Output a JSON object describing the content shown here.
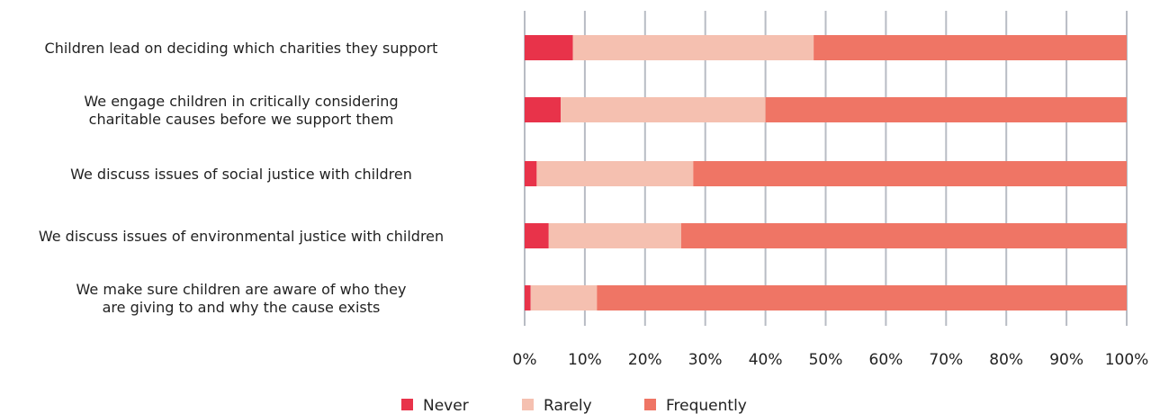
{
  "chart_data": {
    "type": "bar",
    "orientation": "horizontal",
    "stacked": true,
    "categories": [
      [
        "Children lead on deciding which charities they support"
      ],
      [
        "We engage children in critically considering",
        "charitable causes before we support them"
      ],
      [
        "We discuss issues of social justice with children"
      ],
      [
        "We discuss issues of environmental justice with children"
      ],
      [
        "We make sure children are aware of who they",
        "are giving to and why the cause exists"
      ]
    ],
    "series": [
      {
        "name": "Never",
        "color": "#e8334a",
        "values": [
          8,
          6,
          2,
          4,
          1
        ]
      },
      {
        "name": "Rarely",
        "color": "#f5c0b0",
        "values": [
          40,
          34,
          26,
          22,
          11
        ]
      },
      {
        "name": "Frequently",
        "color": "#ef7565",
        "values": [
          52,
          60,
          72,
          74,
          88
        ]
      }
    ],
    "xlim": [
      0,
      100
    ],
    "xticks": [
      "0%",
      "10%",
      "20%",
      "30%",
      "40%",
      "50%",
      "60%",
      "70%",
      "80%",
      "90%",
      "100%"
    ],
    "grid": true,
    "legend": "bottom"
  }
}
